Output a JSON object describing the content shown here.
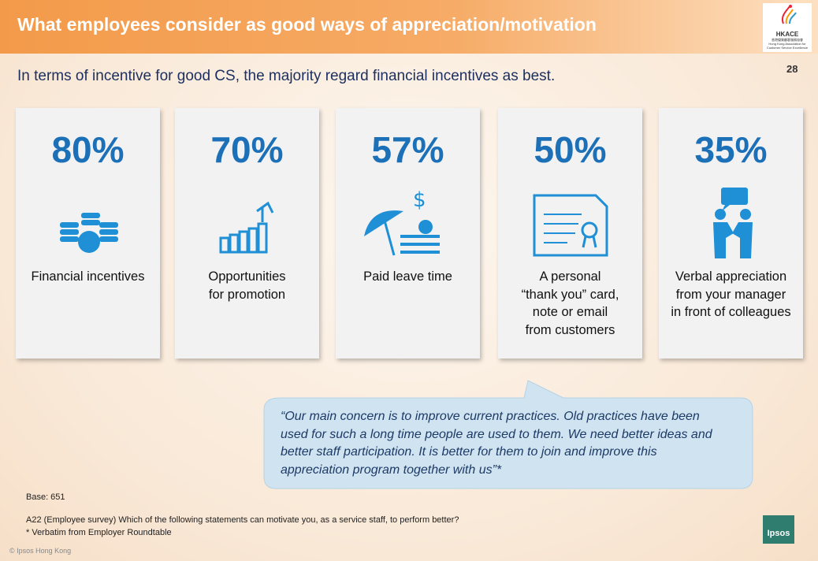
{
  "header": {
    "title": "What employees consider as good ways of appreciation/motivation",
    "logo": {
      "name": "HKACE",
      "lines": [
        "香港優質顧客服務協會",
        "Hong Kong Association for",
        "Customer Service Excellence"
      ]
    },
    "page_number": "28"
  },
  "subtitle": "In terms of incentive for good CS, the majority regard financial incentives as best.",
  "cards": [
    {
      "percent": "80%",
      "label": [
        "Financial incentives"
      ]
    },
    {
      "percent": "70%",
      "label": [
        "Opportunities",
        "for promotion"
      ]
    },
    {
      "percent": "57%",
      "label": [
        "Paid leave time"
      ]
    },
    {
      "percent": "50%",
      "label": [
        "A personal",
        "“thank you” card,",
        "note or email",
        "from customers"
      ]
    },
    {
      "percent": "35%",
      "label": [
        "Verbal appreciation",
        "from your manager",
        "in front of colleagues"
      ]
    }
  ],
  "quote": [
    "“Our main concern is to improve current practices. Old practices have been",
    "used for such a long time people are used to them. We need better ideas and",
    "better staff participation. It is better for them to join and improve this",
    "appreciation program together with us”*"
  ],
  "footer": {
    "base": "Base: 651",
    "notes": [
      "A22 (Employee survey) Which of the following statements can motivate you, as a service staff, to perform better?",
      "* Verbatim from Employer Roundtable"
    ],
    "copyright": "© Ipsos Hong Kong",
    "brand": "Ipsos"
  }
}
